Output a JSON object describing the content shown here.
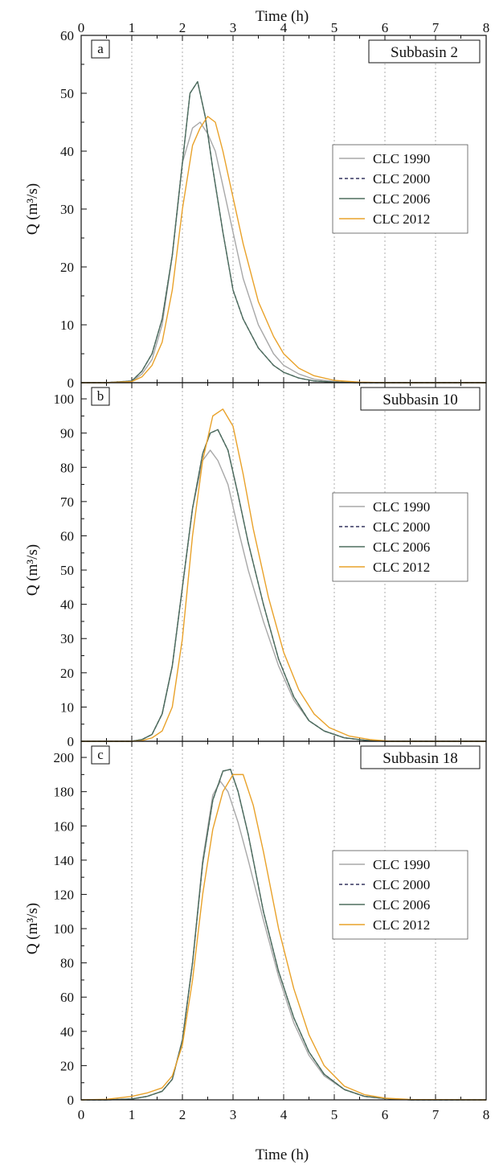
{
  "x_axis_top_title": "Time (h)",
  "x_axis_bottom_title": "Time (h)",
  "chart_data": [
    {
      "type": "line",
      "panel": "a",
      "title": "Subbasin 2",
      "xlabel": "Time (h)",
      "ylabel": "Q (m³/s)",
      "xlim": [
        0,
        8
      ],
      "ylim": [
        0,
        60
      ],
      "xticks": [
        0,
        1,
        2,
        3,
        4,
        5,
        6,
        7,
        8
      ],
      "yticks": [
        0,
        10,
        20,
        30,
        40,
        50,
        60
      ],
      "grid": "vertical dotted",
      "legend": "right",
      "series": [
        {
          "name": "CLC 1990",
          "color": "#a8a8a8",
          "dash": "solid",
          "x": [
            0,
            0.5,
            1.0,
            1.2,
            1.4,
            1.6,
            1.8,
            2.0,
            2.2,
            2.35,
            2.5,
            2.65,
            2.8,
            3.0,
            3.2,
            3.5,
            3.8,
            4.0,
            4.3,
            4.6,
            5.0,
            5.5,
            6.0,
            8.0
          ],
          "y": [
            0,
            0,
            0.2,
            1.5,
            4,
            10,
            22,
            38,
            44,
            45,
            43,
            40,
            34,
            26,
            18,
            10,
            5,
            3,
            1.5,
            0.6,
            0.2,
            0.05,
            0,
            0
          ]
        },
        {
          "name": "CLC 2000",
          "color": "#34345e",
          "dash": "4,3",
          "x": [
            0,
            0.5,
            1.0,
            1.2,
            1.4,
            1.6,
            1.8,
            2.0,
            2.15,
            2.3,
            2.45,
            2.6,
            2.8,
            3.0,
            3.2,
            3.5,
            3.8,
            4.0,
            4.3,
            4.6,
            5.0,
            5.5,
            6.0,
            8.0
          ],
          "y": [
            0,
            0,
            0.3,
            2,
            5,
            11,
            22,
            38,
            50,
            52,
            46,
            37,
            26,
            16,
            11,
            6,
            3,
            1.8,
            0.8,
            0.3,
            0.1,
            0,
            0,
            0
          ]
        },
        {
          "name": "CLC 2006",
          "color": "#4e6e5e",
          "dash": "solid",
          "x": [
            0,
            0.5,
            1.0,
            1.2,
            1.4,
            1.6,
            1.8,
            2.0,
            2.15,
            2.3,
            2.45,
            2.6,
            2.8,
            3.0,
            3.2,
            3.5,
            3.8,
            4.0,
            4.3,
            4.6,
            5.0,
            5.5,
            6.0,
            8.0
          ],
          "y": [
            0,
            0,
            0.3,
            2,
            5,
            11,
            22,
            38,
            50,
            52,
            46,
            37,
            26,
            16,
            11,
            6,
            3,
            1.8,
            0.8,
            0.3,
            0.1,
            0,
            0,
            0
          ]
        },
        {
          "name": "CLC 2012",
          "color": "#e9a22a",
          "dash": "solid",
          "x": [
            0,
            0.5,
            1.0,
            1.2,
            1.4,
            1.6,
            1.8,
            2.0,
            2.2,
            2.35,
            2.5,
            2.65,
            2.8,
            3.0,
            3.2,
            3.5,
            3.8,
            4.0,
            4.3,
            4.6,
            5.0,
            5.5,
            6.0,
            8.0
          ],
          "y": [
            0,
            0,
            0.2,
            1,
            3,
            7,
            16,
            30,
            41,
            44,
            46,
            45,
            40,
            32,
            24,
            14,
            8,
            5,
            2.5,
            1.2,
            0.4,
            0.1,
            0,
            0
          ]
        }
      ]
    },
    {
      "type": "line",
      "panel": "b",
      "title": "Subbasin 10",
      "xlabel": "Time (h)",
      "ylabel": "Q (m³/s)",
      "xlim": [
        0,
        8
      ],
      "ylim": [
        0,
        100
      ],
      "xticks": [
        0,
        1,
        2,
        3,
        4,
        5,
        6,
        7,
        8
      ],
      "yticks": [
        0,
        10,
        20,
        30,
        40,
        50,
        60,
        70,
        80,
        90,
        100
      ],
      "grid": "vertical dotted",
      "legend": "right",
      "series": [
        {
          "name": "CLC 1990",
          "color": "#a8a8a8",
          "dash": "solid",
          "x": [
            0,
            1.0,
            1.2,
            1.4,
            1.6,
            1.8,
            2.0,
            2.2,
            2.4,
            2.55,
            2.7,
            2.9,
            3.1,
            3.3,
            3.6,
            3.9,
            4.2,
            4.5,
            4.8,
            5.2,
            5.6,
            6.0,
            8.0
          ],
          "y": [
            0,
            0,
            0.5,
            2,
            8,
            22,
            45,
            68,
            82,
            85,
            82,
            75,
            62,
            50,
            35,
            22,
            12,
            6,
            3,
            1,
            0.3,
            0,
            0
          ]
        },
        {
          "name": "CLC 2000",
          "color": "#34345e",
          "dash": "4,3",
          "x": [
            0,
            1.0,
            1.2,
            1.4,
            1.6,
            1.8,
            2.0,
            2.2,
            2.4,
            2.55,
            2.7,
            2.9,
            3.1,
            3.3,
            3.6,
            3.9,
            4.2,
            4.5,
            4.8,
            5.2,
            5.6,
            6.0,
            8.0
          ],
          "y": [
            0,
            0,
            0.5,
            2,
            8,
            22,
            45,
            68,
            84,
            90,
            91,
            85,
            72,
            58,
            40,
            24,
            13,
            6,
            3,
            1,
            0.3,
            0,
            0
          ]
        },
        {
          "name": "CLC 2006",
          "color": "#4e6e5e",
          "dash": "solid",
          "x": [
            0,
            1.0,
            1.2,
            1.4,
            1.6,
            1.8,
            2.0,
            2.2,
            2.4,
            2.55,
            2.7,
            2.9,
            3.1,
            3.3,
            3.6,
            3.9,
            4.2,
            4.5,
            4.8,
            5.2,
            5.6,
            6.0,
            8.0
          ],
          "y": [
            0,
            0,
            0.5,
            2,
            8,
            22,
            45,
            68,
            84,
            90,
            91,
            85,
            72,
            58,
            40,
            24,
            13,
            6,
            3,
            1,
            0.3,
            0,
            0
          ]
        },
        {
          "name": "CLC 2012",
          "color": "#e9a22a",
          "dash": "solid",
          "x": [
            0,
            1.0,
            1.2,
            1.4,
            1.6,
            1.8,
            2.0,
            2.2,
            2.4,
            2.6,
            2.8,
            3.0,
            3.2,
            3.4,
            3.7,
            4.0,
            4.3,
            4.6,
            4.9,
            5.3,
            5.7,
            6.1,
            8.0
          ],
          "y": [
            0,
            0,
            0.2,
            1,
            3,
            10,
            30,
            60,
            82,
            95,
            97,
            92,
            78,
            62,
            42,
            26,
            15,
            8,
            4,
            1.5,
            0.5,
            0,
            0
          ]
        }
      ]
    },
    {
      "type": "line",
      "panel": "c",
      "title": "Subbasin 18",
      "xlabel": "Time (h)",
      "ylabel": "Q (m³/s)",
      "xlim": [
        0,
        8
      ],
      "ylim": [
        0,
        200
      ],
      "xticks": [
        0,
        1,
        2,
        3,
        4,
        5,
        6,
        7,
        8
      ],
      "yticks": [
        0,
        20,
        40,
        60,
        80,
        100,
        120,
        140,
        160,
        180,
        200
      ],
      "grid": "vertical dotted",
      "legend": "right",
      "series": [
        {
          "name": "CLC 1990",
          "color": "#a8a8a8",
          "dash": "solid",
          "x": [
            0,
            0.5,
            1.0,
            1.3,
            1.6,
            1.8,
            2.0,
            2.2,
            2.4,
            2.6,
            2.75,
            2.9,
            3.1,
            3.3,
            3.6,
            3.9,
            4.2,
            4.5,
            4.8,
            5.2,
            5.6,
            6.0,
            6.5,
            8.0
          ],
          "y": [
            0,
            0,
            0.5,
            2,
            5,
            12,
            35,
            80,
            140,
            178,
            186,
            180,
            162,
            140,
            105,
            72,
            45,
            26,
            14,
            6,
            2,
            0.8,
            0,
            0
          ]
        },
        {
          "name": "CLC 2000",
          "color": "#34345e",
          "dash": "4,3",
          "x": [
            0,
            0.5,
            1.0,
            1.3,
            1.6,
            1.8,
            2.0,
            2.2,
            2.4,
            2.6,
            2.8,
            2.95,
            3.1,
            3.3,
            3.6,
            3.9,
            4.2,
            4.5,
            4.8,
            5.2,
            5.6,
            6.0,
            6.5,
            8.0
          ],
          "y": [
            0,
            0,
            0.5,
            2,
            5,
            12,
            35,
            80,
            138,
            175,
            192,
            193,
            180,
            155,
            110,
            75,
            48,
            28,
            15,
            6,
            2,
            0.8,
            0,
            0
          ]
        },
        {
          "name": "CLC 2006",
          "color": "#4e6e5e",
          "dash": "solid",
          "x": [
            0,
            0.5,
            1.0,
            1.3,
            1.6,
            1.8,
            2.0,
            2.2,
            2.4,
            2.6,
            2.8,
            2.95,
            3.1,
            3.3,
            3.6,
            3.9,
            4.2,
            4.5,
            4.8,
            5.2,
            5.6,
            6.0,
            6.5,
            8.0
          ],
          "y": [
            0,
            0,
            0.5,
            2,
            5,
            12,
            35,
            80,
            138,
            175,
            192,
            193,
            180,
            155,
            110,
            75,
            48,
            28,
            15,
            6,
            2,
            0.8,
            0,
            0
          ]
        },
        {
          "name": "CLC 2012",
          "color": "#e9a22a",
          "dash": "solid",
          "x": [
            0,
            0.5,
            1.0,
            1.3,
            1.6,
            1.8,
            2.0,
            2.2,
            2.4,
            2.6,
            2.8,
            3.0,
            3.2,
            3.4,
            3.6,
            3.9,
            4.2,
            4.5,
            4.8,
            5.2,
            5.6,
            6.0,
            6.5,
            8.0
          ],
          "y": [
            0,
            0.3,
            2,
            4,
            7,
            14,
            32,
            70,
            120,
            158,
            180,
            190,
            190,
            172,
            145,
            100,
            65,
            38,
            20,
            8,
            3,
            1,
            0.2,
            0
          ]
        }
      ]
    }
  ]
}
